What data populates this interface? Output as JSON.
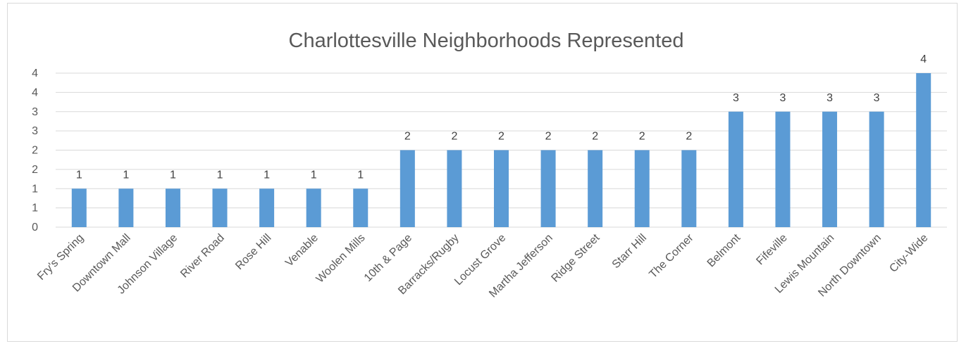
{
  "chart_data": {
    "type": "bar",
    "title": "Charlottesville Neighborhoods Represented",
    "xlabel": "",
    "ylabel": "",
    "categories": [
      "Fry's Spring",
      "Downtown Mall",
      "Johnson Village",
      "River Road",
      "Rose Hill",
      "Venable",
      "Woolen Mills",
      "10th & Page",
      "Barracks/Rugby",
      "Locust Grove",
      "Martha Jefferson",
      "Ridge Street",
      "Starr Hill",
      "The Corner",
      "Belmont",
      "Fifeville",
      "Lewis Mountain",
      "North Downtown",
      "City-Wide"
    ],
    "values": [
      1,
      1,
      1,
      1,
      1,
      1,
      1,
      2,
      2,
      2,
      2,
      2,
      2,
      2,
      3,
      3,
      3,
      3,
      4
    ],
    "y_ticks": [
      "0",
      "1",
      "1",
      "2",
      "2",
      "3",
      "3",
      "4",
      "4"
    ],
    "ylim": [
      0,
      4
    ],
    "grid": true,
    "legend": "none",
    "data_labels": true,
    "bar_color": "#5b9bd5"
  }
}
